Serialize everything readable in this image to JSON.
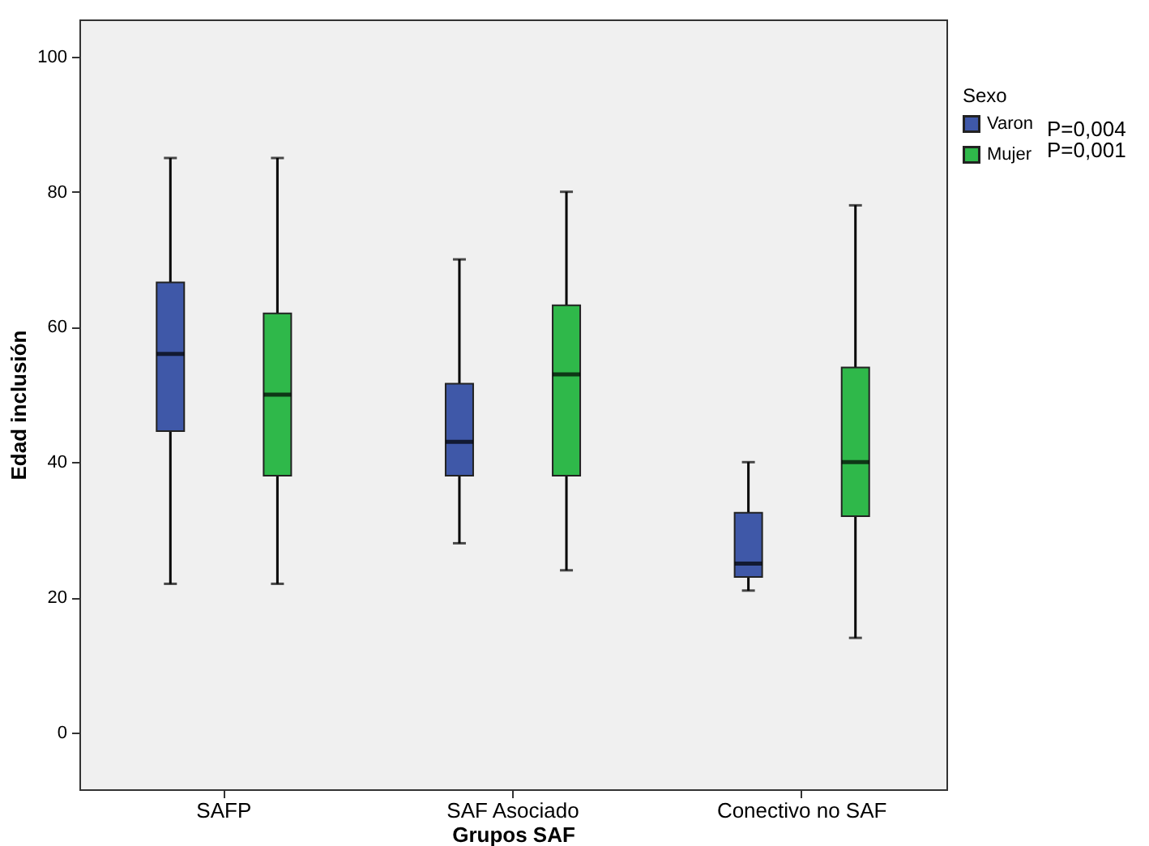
{
  "chart_data": {
    "type": "box",
    "xlabel": "Grupos SAF",
    "ylabel": "Edad inclusión",
    "legend_title": "Sexo",
    "categories": [
      "SAFP",
      "SAF Asociado",
      "Conectivo no SAF"
    ],
    "series": [
      {
        "name": "Varon",
        "color": "#3f58a8",
        "boxes": [
          {
            "low": 22,
            "q1": 44.6,
            "median": 56,
            "q3": 66.6,
            "high": 85
          },
          {
            "low": 28,
            "q1": 38,
            "median": 43,
            "q3": 51.6,
            "high": 70
          },
          {
            "low": 21,
            "q1": 23,
            "median": 25,
            "q3": 32.5,
            "high": 40
          }
        ]
      },
      {
        "name": "Mujer",
        "color": "#2fb84a",
        "boxes": [
          {
            "low": 22,
            "q1": 38,
            "median": 50,
            "q3": 62,
            "high": 85
          },
          {
            "low": 24,
            "q1": 38,
            "median": 53,
            "q3": 63.2,
            "high": 80
          },
          {
            "low": 14,
            "q1": 32,
            "median": 40,
            "q3": 54,
            "high": 78
          }
        ]
      }
    ],
    "annotations": [
      "P=0,004",
      "P=0,001"
    ],
    "ylim": [
      -8.4,
      105.5
    ],
    "yticks": [
      0,
      20,
      40,
      60,
      80,
      100
    ],
    "grid": false,
    "legend": "right"
  }
}
